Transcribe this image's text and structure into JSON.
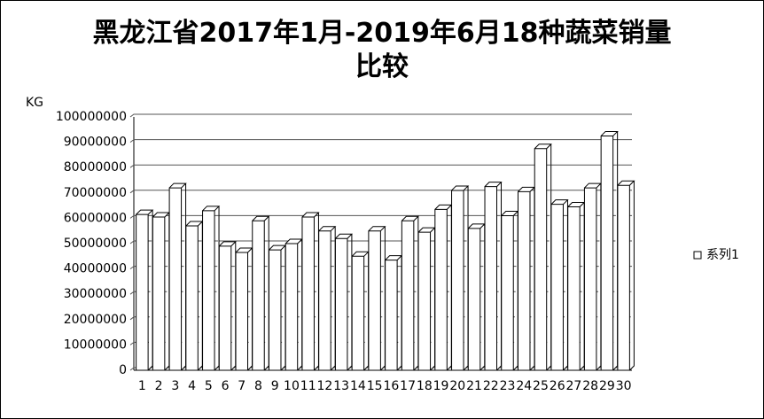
{
  "chart_data": {
    "type": "bar3d",
    "title": "黑龙江省2017年1月-2019年6月18种蔬菜销量比较",
    "y_label": "KG",
    "categories": [
      "1",
      "2",
      "3",
      "4",
      "5",
      "6",
      "7",
      "8",
      "9",
      "10",
      "11",
      "12",
      "13",
      "14",
      "15",
      "16",
      "17",
      "18",
      "19",
      "20",
      "21",
      "22",
      "23",
      "24",
      "25",
      "26",
      "27",
      "28",
      "29",
      "30"
    ],
    "series": [
      {
        "name": "系列1",
        "color": "#ffffff",
        "values": [
          61500000,
          60500000,
          72000000,
          57000000,
          63000000,
          49000000,
          46500000,
          59000000,
          47500000,
          50000000,
          60500000,
          55000000,
          52000000,
          45000000,
          55000000,
          43500000,
          59000000,
          54500000,
          63500000,
          71000000,
          56000000,
          72500000,
          61000000,
          70500000,
          87500000,
          65500000,
          64500000,
          72000000,
          92500000,
          73000000
        ]
      }
    ],
    "ylim": [
      0,
      100000000
    ],
    "yticks": [
      0,
      10000000,
      20000000,
      30000000,
      40000000,
      50000000,
      60000000,
      70000000,
      80000000,
      90000000,
      100000000
    ],
    "grid": true,
    "legend": "right"
  }
}
